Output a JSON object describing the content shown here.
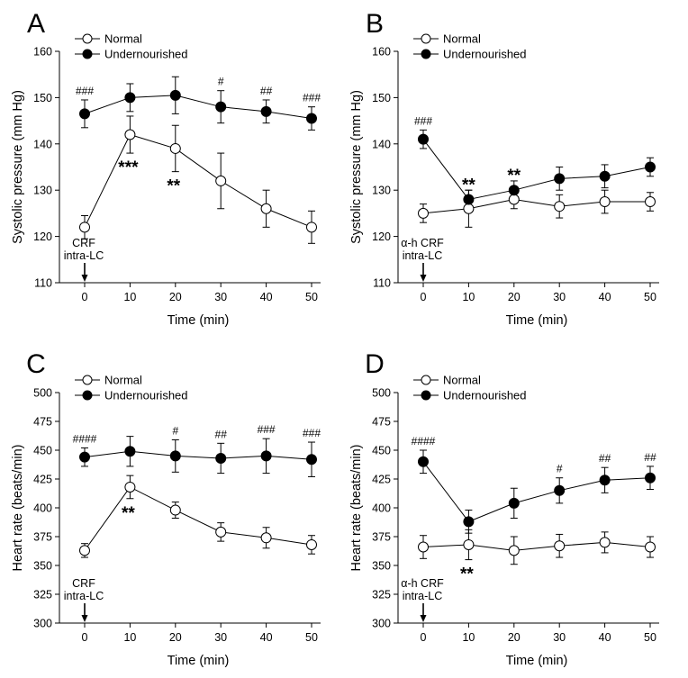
{
  "chart_data": [
    {
      "type": "line",
      "panel": "A",
      "xlabel": "Time (min)",
      "ylabel": "Systolic pressure (mm Hg)",
      "x": [
        0,
        10,
        20,
        30,
        40,
        50
      ],
      "xticks": [
        "0",
        "10",
        "20",
        "30",
        "40",
        "50"
      ],
      "ylim": [
        110,
        160
      ],
      "yticks": [
        "110",
        "120",
        "130",
        "140",
        "150",
        "160"
      ],
      "series": [
        {
          "name": "Normal",
          "marker": "open",
          "values": [
            122,
            142,
            139,
            132,
            126,
            122
          ],
          "errors": [
            2.5,
            4,
            5,
            6,
            4,
            3.5
          ]
        },
        {
          "name": "Undernourished",
          "marker": "filled",
          "values": [
            146.5,
            150,
            150.5,
            148,
            147,
            145.5
          ],
          "errors": [
            3,
            3,
            4,
            3.5,
            2.5,
            2.5
          ]
        }
      ],
      "group_marks": [
        {
          "x": 0,
          "text": "###"
        },
        {
          "x": 30,
          "text": "#"
        },
        {
          "x": 40,
          "text": "##"
        },
        {
          "x": 50,
          "text": "###"
        }
      ],
      "star_marks": [
        {
          "x": 10,
          "text": "***"
        },
        {
          "x": 20,
          "text": "**"
        }
      ],
      "injection": {
        "line1": "CRF",
        "line2": "intra-LC"
      }
    },
    {
      "type": "line",
      "panel": "B",
      "xlabel": "Time (min)",
      "ylabel": "Systolic pressure (mm Hg)",
      "x": [
        0,
        10,
        20,
        30,
        40,
        50
      ],
      "xticks": [
        "0",
        "10",
        "20",
        "30",
        "40",
        "50"
      ],
      "ylim": [
        110,
        160
      ],
      "yticks": [
        "110",
        "120",
        "130",
        "140",
        "150",
        "160"
      ],
      "series": [
        {
          "name": "Normal",
          "marker": "open",
          "values": [
            125,
            126,
            128,
            126.5,
            127.5,
            127.5
          ],
          "errors": [
            2,
            4,
            2,
            2.5,
            2.5,
            2
          ]
        },
        {
          "name": "Undernourished",
          "marker": "filled",
          "values": [
            141,
            128,
            130,
            132.5,
            133,
            135
          ],
          "errors": [
            2,
            2,
            2,
            2.5,
            2.5,
            2
          ]
        }
      ],
      "group_marks": [
        {
          "x": 0,
          "text": "###"
        }
      ],
      "star_marks": [
        {
          "x": 10,
          "text": "**"
        },
        {
          "x": 20,
          "text": "**"
        }
      ],
      "injection": {
        "line1": "α-h CRF",
        "line2": "intra-LC"
      }
    },
    {
      "type": "line",
      "panel": "C",
      "xlabel": "Time (min)",
      "ylabel": "Heart rate (beats/min)",
      "x": [
        0,
        10,
        20,
        30,
        40,
        50
      ],
      "xticks": [
        "0",
        "10",
        "20",
        "30",
        "40",
        "50"
      ],
      "ylim": [
        300,
        500
      ],
      "yticks": [
        "300",
        "325",
        "350",
        "375",
        "400",
        "425",
        "450",
        "475",
        "500"
      ],
      "series": [
        {
          "name": "Normal",
          "marker": "open",
          "values": [
            363,
            418,
            398,
            379,
            374,
            368
          ],
          "errors": [
            6,
            10,
            7,
            8,
            9,
            8
          ]
        },
        {
          "name": "Undernourished",
          "marker": "filled",
          "values": [
            444,
            449,
            445,
            443,
            445,
            442
          ],
          "errors": [
            8,
            13,
            14,
            13,
            15,
            15
          ]
        }
      ],
      "group_marks": [
        {
          "x": 0,
          "text": "####"
        },
        {
          "x": 20,
          "text": "#"
        },
        {
          "x": 30,
          "text": "##"
        },
        {
          "x": 40,
          "text": "###"
        },
        {
          "x": 50,
          "text": "###"
        }
      ],
      "star_marks": [
        {
          "x": 10,
          "text": "**"
        }
      ],
      "injection": {
        "line1": "CRF",
        "line2": "intra-LC"
      }
    },
    {
      "type": "line",
      "panel": "D",
      "xlabel": "Time (min)",
      "ylabel": "Heart rate (beats/min)",
      "x": [
        0,
        10,
        20,
        30,
        40,
        50
      ],
      "xticks": [
        "0",
        "10",
        "20",
        "30",
        "40",
        "50"
      ],
      "ylim": [
        300,
        500
      ],
      "yticks": [
        "300",
        "325",
        "350",
        "375",
        "400",
        "425",
        "450",
        "475",
        "500"
      ],
      "series": [
        {
          "name": "Normal",
          "marker": "open",
          "values": [
            366,
            368,
            363,
            367,
            370,
            366
          ],
          "errors": [
            10,
            13,
            12,
            10,
            9,
            9
          ]
        },
        {
          "name": "Undernourished",
          "marker": "filled",
          "values": [
            440,
            388,
            404,
            415,
            424,
            426
          ],
          "errors": [
            10,
            10,
            13,
            11,
            11,
            10
          ]
        }
      ],
      "group_marks": [
        {
          "x": 0,
          "text": "####"
        },
        {
          "x": 30,
          "text": "#"
        },
        {
          "x": 40,
          "text": "##"
        },
        {
          "x": 50,
          "text": "##"
        }
      ],
      "star_marks": [
        {
          "x": 10,
          "text": "**"
        }
      ],
      "injection": {
        "line1": "α-h CRF",
        "line2": "intra-LC"
      }
    }
  ]
}
